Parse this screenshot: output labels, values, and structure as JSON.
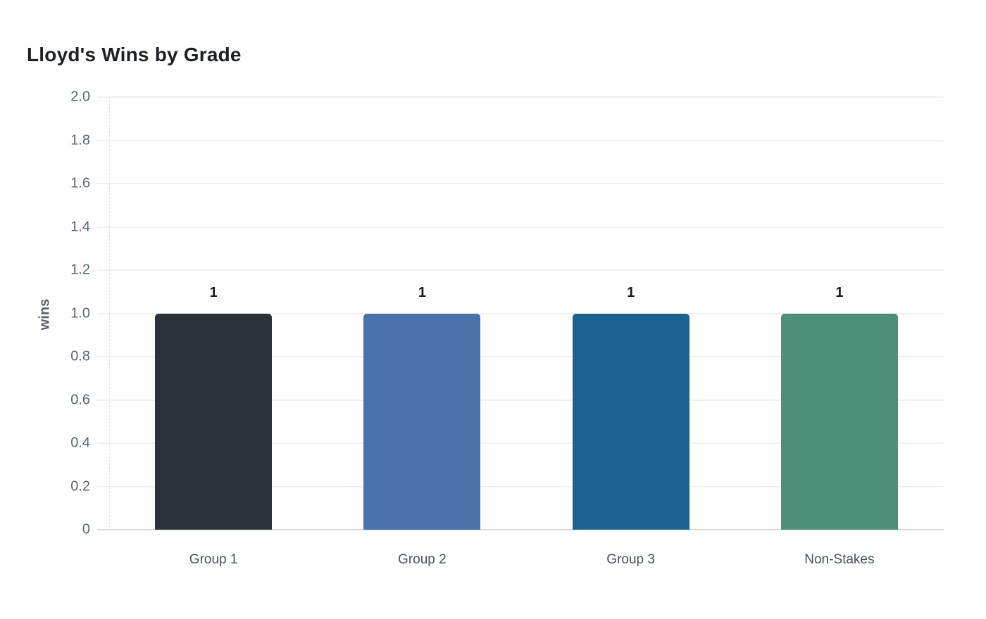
{
  "page": {
    "background_color": "#ffffff"
  },
  "chart_data": {
    "type": "bar",
    "title": "Lloyd's Wins by Grade",
    "categories": [
      "Group 1",
      "Group 2",
      "Group 3",
      "Non-Stakes"
    ],
    "values": [
      1,
      1,
      1,
      1
    ],
    "bar_value_labels": [
      "1",
      "1",
      "1",
      "1"
    ],
    "bar_colors": [
      "#2a3338",
      "#4a72ab",
      "#1b638f",
      "#4e8f7a"
    ],
    "xlabel": "",
    "ylabel": "wins",
    "ylim": [
      0,
      2.0
    ],
    "ytick_labels": [
      "2.0",
      "1.8",
      "1.6",
      "1.4",
      "1.2",
      "1.0",
      "0.8",
      "0.6",
      "0.4",
      "0.2",
      "0"
    ],
    "ytick_values": [
      2.0,
      1.8,
      1.6,
      1.4,
      1.2,
      1.0,
      0.8,
      0.6,
      0.4,
      0.2,
      0
    ],
    "grid": true,
    "legend": "none",
    "title_color": "#1d2125",
    "axis_text_color": "#5b6570",
    "category_text_color": "#49525c",
    "value_label_color": "#16181a",
    "gridline_color": "#f0f0f0",
    "baseline_color": "#d8d8d8"
  }
}
